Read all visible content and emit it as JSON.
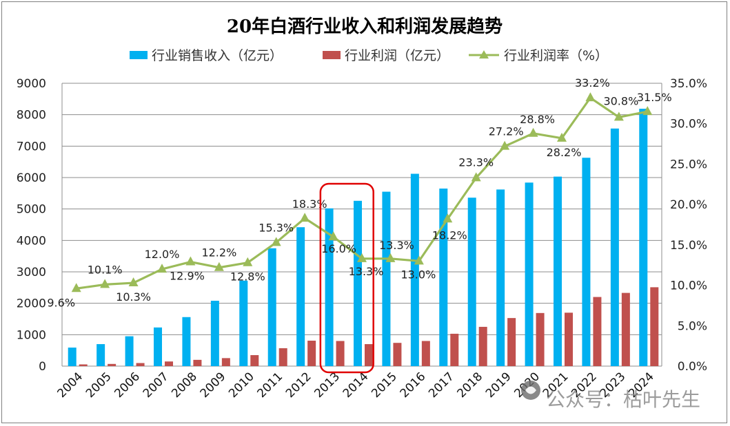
{
  "chart_data": {
    "type": "bar",
    "title": "20年白酒行业收入和利润发展趋势",
    "categories": [
      "2004",
      "2005",
      "2006",
      "2007",
      "2008",
      "2009",
      "2010",
      "2011",
      "2012",
      "2013",
      "2014",
      "2015",
      "2016",
      "2017",
      "2018",
      "2019",
      "2020",
      "2021",
      "2022",
      "2023",
      "2024"
    ],
    "series": [
      {
        "name": "行业销售收入（亿元）",
        "kind": "bar",
        "axis": "left",
        "color": "#00b0f0",
        "values": [
          590,
          700,
          950,
          1230,
          1560,
          2080,
          2720,
          3750,
          4420,
          5020,
          5260,
          5550,
          6120,
          5650,
          5360,
          5620,
          5840,
          6030,
          6630,
          7560,
          8190
        ]
      },
      {
        "name": "行业利润（亿元）",
        "kind": "bar",
        "axis": "left",
        "color": "#c0504d",
        "values": [
          55,
          70,
          98,
          148,
          200,
          255,
          350,
          570,
          810,
          800,
          700,
          740,
          800,
          1030,
          1250,
          1530,
          1690,
          1700,
          2200,
          2330,
          2510
        ]
      },
      {
        "name": "行业利润率（%）",
        "kind": "line",
        "axis": "right",
        "color": "#9bbb59",
        "values": [
          9.6,
          10.1,
          10.3,
          12.0,
          12.9,
          12.2,
          12.8,
          15.3,
          18.3,
          16.0,
          13.3,
          13.3,
          13.0,
          18.2,
          23.3,
          27.2,
          28.8,
          28.2,
          33.2,
          30.8,
          31.5
        ],
        "labels": [
          "9.6%",
          "10.1%",
          "10.3%",
          "12.0%",
          "12.9%",
          "12.2%",
          "12.8%",
          "15.3%",
          "18.3%",
          "16.0%",
          "13.3%",
          "13.3%",
          "13.0%",
          "18.2%",
          "23.3%",
          "27.2%",
          "28.8%",
          "28.2%",
          "33.2%",
          "30.8%",
          "31.5%"
        ]
      }
    ],
    "y_left": {
      "min": 0,
      "max": 9000,
      "ticks": [
        "0",
        "1000",
        "2000",
        "3000",
        "4000",
        "5000",
        "6000",
        "7000",
        "8000",
        "9000"
      ]
    },
    "y_right": {
      "min": 0,
      "max": 35,
      "ticks": [
        "0.0%",
        "5.0%",
        "10.0%",
        "15.0%",
        "20.0%",
        "25.0%",
        "30.0%",
        "35.0%"
      ]
    },
    "legend_position": "top",
    "grid": "horizontal",
    "highlight": {
      "from_category": "2013",
      "to_category": "2014",
      "color": "#e00000"
    }
  },
  "watermark": {
    "text": "公众号：枯叶先生",
    "icon": "snowball-logo-icon"
  }
}
